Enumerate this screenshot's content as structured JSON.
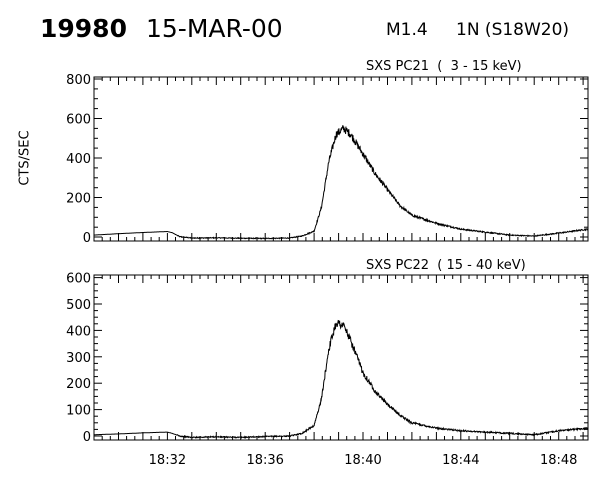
{
  "header": {
    "event_number": "19980",
    "date": "15-MAR-00",
    "flare_class": "M1.4",
    "flare_location": "1N (S18W20)"
  },
  "chart_data": [
    {
      "type": "line",
      "title": "SXS PC21  (  3 - 15 keV)",
      "ylabel": "CTS/SEC",
      "xlabel": "",
      "xlim": [
        "18:29",
        "18:49.2"
      ],
      "ylim": [
        -20,
        810
      ],
      "yticks": [
        0,
        200,
        400,
        600,
        800
      ],
      "grid": false,
      "series": [
        {
          "x": [
            "18:29",
            "18:30",
            "18:31",
            "18:32",
            "18:32.2",
            "18:32.5",
            "18:33",
            "18:34",
            "18:35",
            "18:36",
            "18:37",
            "18:37.5",
            "18:38",
            "18:38.3",
            "18:38.6",
            "18:38.9",
            "18:39.2",
            "18:39.5",
            "18:40",
            "18:40.5",
            "18:41",
            "18:41.5",
            "18:42",
            "18:43",
            "18:44",
            "18:45",
            "18:46",
            "18:47",
            "18:48",
            "18:49.2"
          ],
          "values": [
            10,
            17,
            23,
            28,
            22,
            2,
            -5,
            -4,
            -6,
            -7,
            -5,
            5,
            30,
            150,
            380,
            520,
            550,
            520,
            420,
            320,
            240,
            160,
            110,
            70,
            40,
            25,
            10,
            5,
            20,
            40
          ]
        }
      ]
    },
    {
      "type": "line",
      "title": "SXS PC22  ( 15 - 40 keV)",
      "ylabel": "",
      "xlabel": "",
      "xlim": [
        "18:29",
        "18:49.2"
      ],
      "ylim": [
        -15,
        610
      ],
      "yticks": [
        0,
        100,
        200,
        300,
        400,
        500,
        600
      ],
      "xticks": [
        "18:32",
        "18:36",
        "18:40",
        "18:44",
        "18:48"
      ],
      "grid": false,
      "series": [
        {
          "x": [
            "18:29",
            "18:30",
            "18:31",
            "18:32",
            "18:32.2",
            "18:32.5",
            "18:33",
            "18:34",
            "18:35",
            "18:36",
            "18:37",
            "18:37.5",
            "18:38",
            "18:38.3",
            "18:38.6",
            "18:38.9",
            "18:39.2",
            "18:39.5",
            "18:40",
            "18:40.5",
            "18:41",
            "18:41.5",
            "18:42",
            "18:43",
            "18:44",
            "18:45",
            "18:46",
            "18:47",
            "18:48",
            "18:49.2"
          ],
          "values": [
            5,
            8,
            12,
            15,
            10,
            0,
            -5,
            -3,
            -5,
            -2,
            0,
            10,
            40,
            140,
            330,
            430,
            420,
            360,
            240,
            170,
            120,
            80,
            50,
            30,
            20,
            15,
            10,
            5,
            20,
            30
          ]
        }
      ]
    }
  ]
}
